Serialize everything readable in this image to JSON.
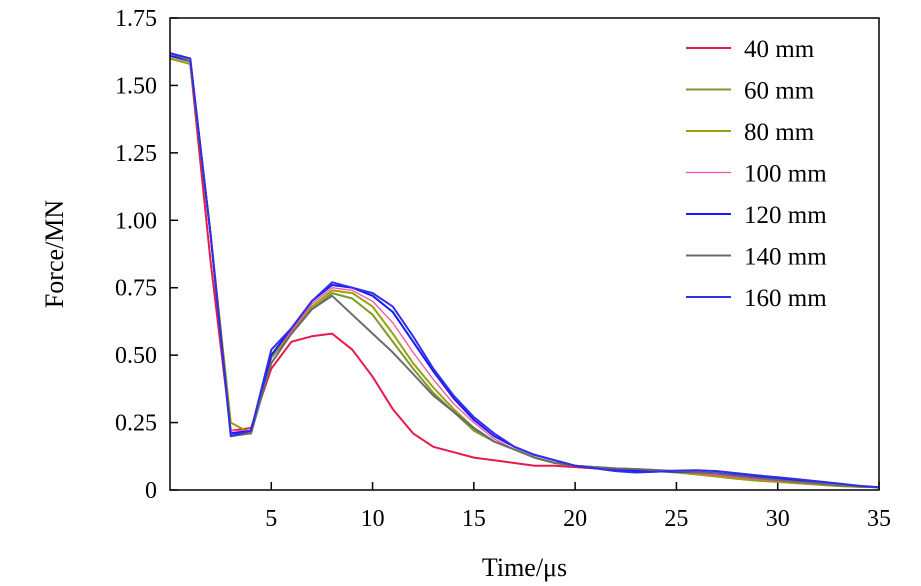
{
  "chart_data": {
    "type": "line",
    "title": "",
    "xlabel": "Time/μs",
    "ylabel": "Force/MN",
    "xlim": [
      0,
      35
    ],
    "ylim": [
      0,
      1.75
    ],
    "xticks": [
      5,
      10,
      15,
      20,
      25,
      30,
      35
    ],
    "xtick_labels": [
      "5",
      "10",
      "15",
      "20",
      "25",
      "30",
      "35"
    ],
    "yticks": [
      0,
      0.25,
      0.5,
      0.75,
      1.0,
      1.25,
      1.5,
      1.75
    ],
    "ytick_labels": [
      "0",
      "0.25",
      "0.50",
      "0.75",
      "1.00",
      "1.25",
      "1.50",
      "1.75"
    ],
    "grid": false,
    "legend_position": "top-right",
    "series": [
      {
        "name": "40 mm",
        "color": "#e8194b",
        "x": [
          0,
          1,
          2,
          3,
          4,
          5,
          6,
          7,
          8,
          9,
          10,
          11,
          12,
          13,
          14,
          15,
          16,
          17,
          18,
          19,
          20,
          21,
          22,
          23,
          24,
          25,
          26,
          27,
          28,
          29,
          30,
          31,
          32,
          33,
          34,
          35
        ],
        "y": [
          1.6,
          1.58,
          0.85,
          0.22,
          0.23,
          0.45,
          0.55,
          0.57,
          0.58,
          0.52,
          0.42,
          0.3,
          0.21,
          0.16,
          0.14,
          0.12,
          0.11,
          0.1,
          0.09,
          0.09,
          0.085,
          0.08,
          0.078,
          0.075,
          0.072,
          0.07,
          0.066,
          0.06,
          0.052,
          0.044,
          0.036,
          0.03,
          0.024,
          0.018,
          0.013,
          0.01
        ]
      },
      {
        "name": "60 mm",
        "color": "#7a9a2a",
        "x": [
          0,
          1,
          2,
          3,
          4,
          5,
          6,
          7,
          8,
          9,
          10,
          11,
          12,
          13,
          14,
          15,
          16,
          17,
          18,
          19,
          20,
          21,
          22,
          23,
          24,
          25,
          26,
          27,
          28,
          29,
          30,
          31,
          32,
          33,
          34,
          35
        ],
        "y": [
          1.61,
          1.59,
          0.95,
          0.21,
          0.21,
          0.49,
          0.58,
          0.67,
          0.73,
          0.71,
          0.65,
          0.55,
          0.45,
          0.36,
          0.29,
          0.22,
          0.18,
          0.15,
          0.12,
          0.1,
          0.09,
          0.085,
          0.08,
          0.075,
          0.07,
          0.065,
          0.058,
          0.05,
          0.042,
          0.035,
          0.03,
          0.025,
          0.02,
          0.015,
          0.012,
          0.01
        ]
      },
      {
        "name": "80 mm",
        "color": "#9aa010",
        "x": [
          0,
          1,
          2,
          3,
          4,
          5,
          6,
          7,
          8,
          9,
          10,
          11,
          12,
          13,
          14,
          15,
          16,
          17,
          18,
          19,
          20,
          21,
          22,
          23,
          24,
          25,
          26,
          27,
          28,
          29,
          30,
          31,
          32,
          33,
          34,
          35
        ],
        "y": [
          1.6,
          1.58,
          0.95,
          0.25,
          0.21,
          0.5,
          0.59,
          0.68,
          0.74,
          0.73,
          0.68,
          0.58,
          0.47,
          0.38,
          0.3,
          0.23,
          0.18,
          0.15,
          0.12,
          0.1,
          0.09,
          0.085,
          0.08,
          0.077,
          0.072,
          0.066,
          0.058,
          0.05,
          0.042,
          0.035,
          0.03,
          0.025,
          0.02,
          0.015,
          0.012,
          0.01
        ]
      },
      {
        "name": "100 mm",
        "color": "#ff4fa3",
        "x": [
          0,
          1,
          2,
          3,
          4,
          5,
          6,
          7,
          8,
          9,
          10,
          11,
          12,
          13,
          14,
          15,
          16,
          17,
          18,
          19,
          20,
          21,
          22,
          23,
          24,
          25,
          26,
          27,
          28,
          29,
          30,
          31,
          32,
          33,
          34,
          35
        ],
        "y": [
          1.61,
          1.59,
          0.95,
          0.22,
          0.22,
          0.5,
          0.59,
          0.69,
          0.75,
          0.74,
          0.7,
          0.62,
          0.51,
          0.41,
          0.32,
          0.25,
          0.19,
          0.15,
          0.12,
          0.1,
          0.09,
          0.085,
          0.08,
          0.077,
          0.073,
          0.068,
          0.062,
          0.055,
          0.047,
          0.04,
          0.034,
          0.028,
          0.022,
          0.017,
          0.013,
          0.01
        ]
      },
      {
        "name": "120 mm",
        "color": "#1a1aff",
        "x": [
          0,
          1,
          2,
          3,
          4,
          5,
          6,
          7,
          8,
          9,
          10,
          11,
          12,
          13,
          14,
          15,
          16,
          17,
          18,
          19,
          20,
          21,
          22,
          23,
          24,
          25,
          26,
          27,
          28,
          29,
          30,
          31,
          32,
          33,
          34,
          35
        ],
        "y": [
          1.61,
          1.59,
          0.95,
          0.21,
          0.22,
          0.5,
          0.6,
          0.7,
          0.76,
          0.75,
          0.72,
          0.66,
          0.55,
          0.44,
          0.34,
          0.26,
          0.2,
          0.16,
          0.13,
          0.11,
          0.09,
          0.08,
          0.075,
          0.072,
          0.07,
          0.068,
          0.066,
          0.062,
          0.055,
          0.048,
          0.042,
          0.035,
          0.028,
          0.02,
          0.014,
          0.01
        ]
      },
      {
        "name": "140 mm",
        "color": "#6b6b6b",
        "x": [
          0,
          1,
          2,
          3,
          4,
          5,
          6,
          7,
          8,
          9,
          10,
          11,
          12,
          13,
          14,
          15,
          16,
          17,
          18,
          19,
          20,
          21,
          22,
          23,
          24,
          25,
          26,
          27,
          28,
          29,
          30,
          31,
          32,
          33,
          34,
          35
        ],
        "y": [
          1.62,
          1.59,
          0.95,
          0.2,
          0.21,
          0.47,
          0.58,
          0.67,
          0.72,
          0.65,
          0.58,
          0.51,
          0.43,
          0.35,
          0.29,
          0.23,
          0.18,
          0.15,
          0.12,
          0.1,
          0.09,
          0.085,
          0.08,
          0.078,
          0.074,
          0.07,
          0.066,
          0.06,
          0.052,
          0.044,
          0.037,
          0.03,
          0.024,
          0.018,
          0.013,
          0.01
        ]
      },
      {
        "name": "160 mm",
        "color": "#2f2fe6",
        "x": [
          0,
          1,
          2,
          3,
          4,
          5,
          6,
          7,
          8,
          9,
          10,
          11,
          12,
          13,
          14,
          15,
          16,
          17,
          18,
          19,
          20,
          21,
          22,
          23,
          24,
          25,
          26,
          27,
          28,
          29,
          30,
          31,
          32,
          33,
          34,
          35
        ],
        "y": [
          1.62,
          1.6,
          0.95,
          0.2,
          0.22,
          0.52,
          0.6,
          0.7,
          0.77,
          0.75,
          0.73,
          0.68,
          0.57,
          0.45,
          0.35,
          0.27,
          0.21,
          0.16,
          0.13,
          0.11,
          0.09,
          0.08,
          0.07,
          0.065,
          0.068,
          0.072,
          0.073,
          0.07,
          0.062,
          0.054,
          0.047,
          0.04,
          0.032,
          0.024,
          0.016,
          0.01
        ]
      }
    ]
  }
}
